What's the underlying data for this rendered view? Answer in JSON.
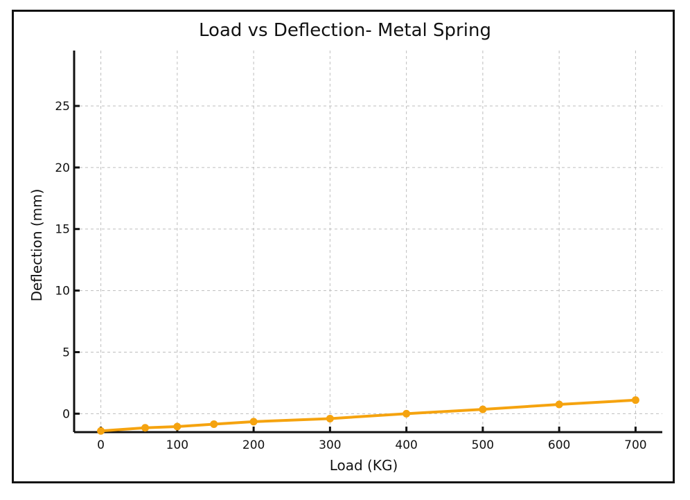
{
  "chart_data": {
    "type": "line",
    "title": "Load vs Deflection- Metal Spring",
    "xlabel": "Load (KG)",
    "ylabel": "Deflection (mm)",
    "xlim": [
      -35,
      735
    ],
    "ylim": [
      -1.5,
      29.5
    ],
    "x_ticks": [
      0,
      100,
      200,
      300,
      400,
      500,
      600,
      700
    ],
    "y_ticks": [
      0,
      5,
      10,
      15,
      20,
      25
    ],
    "grid": true,
    "series": [
      {
        "color": "#f5a30f",
        "x": [
          0,
          58,
          100,
          148,
          200,
          300,
          400,
          500,
          600,
          700
        ],
        "y": [
          -1.4,
          -1.15,
          -1.05,
          -0.85,
          -0.65,
          -0.4,
          0.0,
          0.35,
          0.75,
          1.1
        ]
      }
    ]
  }
}
